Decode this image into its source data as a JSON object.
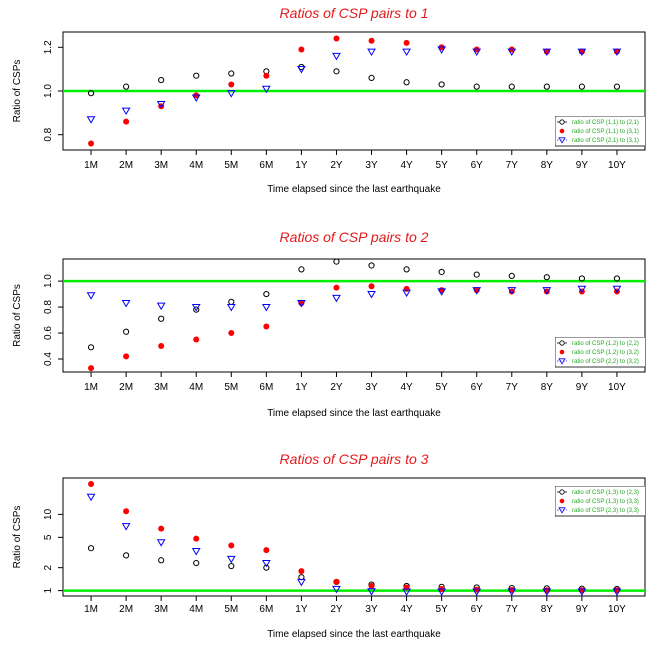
{
  "x_categories": [
    "1M",
    "2M",
    "3M",
    "4M",
    "5M",
    "6M",
    "1Y",
    "2Y",
    "3Y",
    "4Y",
    "5Y",
    "6Y",
    "7Y",
    "8Y",
    "9Y",
    "10Y"
  ],
  "xlabel": "Time elapsed since the last earthquake",
  "ylabel": "Ratio of CSPs",
  "colors": {
    "title": "#e41a1c",
    "series_open": "#000000",
    "series_filled": "#ff0000",
    "series_triangle": "#0000ff",
    "reference_line": "#00ee00",
    "legend_text": "#22aa22"
  },
  "chart_data": [
    {
      "type": "scatter",
      "title": "Ratios of CSP pairs to 1",
      "ylabel": "Ratio of CSPs",
      "xlabel": "Time elapsed since the last earthquake",
      "y_scale": "linear",
      "ylim": [
        0.73,
        1.27
      ],
      "yticks": [
        0.8,
        1.0,
        1.2
      ],
      "ytick_labels": [
        "0.8",
        "1.0",
        "1.2"
      ],
      "reference_line": 1.0,
      "legend_position": "right",
      "series": [
        {
          "name": "ratio of CSP (1,1) to (2,1)",
          "marker": "open-circle",
          "values": [
            0.99,
            1.02,
            1.05,
            1.07,
            1.08,
            1.09,
            1.11,
            1.09,
            1.06,
            1.04,
            1.03,
            1.02,
            1.02,
            1.02,
            1.02,
            1.02
          ]
        },
        {
          "name": "ratio of CSP (1,1) to (3,1)",
          "marker": "filled-circle",
          "values": [
            0.76,
            0.86,
            0.93,
            0.98,
            1.03,
            1.07,
            1.19,
            1.24,
            1.23,
            1.22,
            1.2,
            1.19,
            1.19,
            1.18,
            1.18,
            1.18
          ]
        },
        {
          "name": "ratio of CSP (2,1) to (3,1)",
          "marker": "down-triangle",
          "values": [
            0.87,
            0.91,
            0.94,
            0.97,
            0.99,
            1.01,
            1.1,
            1.16,
            1.18,
            1.18,
            1.19,
            1.18,
            1.18,
            1.18,
            1.18,
            1.18
          ]
        }
      ]
    },
    {
      "type": "scatter",
      "title": "Ratios of CSP pairs to  2",
      "ylabel": "Ratio of CSPs",
      "xlabel": "Time elapsed since the last earthquake",
      "y_scale": "linear",
      "ylim": [
        0.3,
        1.17
      ],
      "yticks": [
        0.4,
        0.6,
        0.8,
        1.0
      ],
      "ytick_labels": [
        "0.4",
        "0.6",
        "0.8",
        "1.0"
      ],
      "reference_line": 1.0,
      "legend_position": "right",
      "series": [
        {
          "name": "ratio of CSP (1,2) to (2,2)",
          "marker": "open-circle",
          "values": [
            0.49,
            0.61,
            0.71,
            0.78,
            0.84,
            0.9,
            1.09,
            1.15,
            1.12,
            1.09,
            1.07,
            1.05,
            1.04,
            1.03,
            1.02,
            1.02
          ]
        },
        {
          "name": "ratio of CSP (1,2) to (3,2)",
          "marker": "filled-circle",
          "values": [
            0.33,
            0.42,
            0.5,
            0.55,
            0.6,
            0.65,
            0.83,
            0.95,
            0.96,
            0.94,
            0.93,
            0.93,
            0.92,
            0.92,
            0.92,
            0.92
          ]
        },
        {
          "name": "ratio of CSP (2,2) to (3,2)",
          "marker": "down-triangle",
          "values": [
            0.89,
            0.83,
            0.81,
            0.8,
            0.8,
            0.8,
            0.83,
            0.87,
            0.9,
            0.91,
            0.92,
            0.93,
            0.93,
            0.93,
            0.94,
            0.94
          ]
        }
      ]
    },
    {
      "type": "scatter",
      "title": "Ratios of CSP pairs to  3",
      "ylabel": "Ratio of CSPs",
      "xlabel": "Time elapsed since the last earthquake",
      "y_scale": "log",
      "ylim": [
        0.85,
        30
      ],
      "yticks": [
        1,
        2,
        5,
        10
      ],
      "ytick_labels": [
        "1",
        "2",
        "5",
        "10"
      ],
      "reference_line": 1.0,
      "legend_position": "top-right",
      "series": [
        {
          "name": "ratio of CSP (1,3) to (2,3)",
          "marker": "open-circle",
          "values": [
            3.6,
            2.9,
            2.5,
            2.3,
            2.1,
            2.0,
            1.5,
            1.3,
            1.2,
            1.15,
            1.12,
            1.1,
            1.08,
            1.07,
            1.06,
            1.05
          ]
        },
        {
          "name": "ratio of CSP (1,3) to (3,3)",
          "marker": "filled-circle",
          "values": [
            25.0,
            11.0,
            6.5,
            4.8,
            3.9,
            3.4,
            1.8,
            1.3,
            1.15,
            1.1,
            1.05,
            1.03,
            1.02,
            1.01,
            1.01,
            1.01
          ]
        },
        {
          "name": "ratio of CSP (2,3) to (3,3)",
          "marker": "down-triangle",
          "values": [
            17.0,
            7.0,
            4.3,
            3.3,
            2.6,
            2.3,
            1.3,
            1.05,
            0.98,
            0.97,
            0.97,
            0.97,
            0.97,
            0.97,
            0.97,
            0.97
          ]
        }
      ]
    }
  ]
}
